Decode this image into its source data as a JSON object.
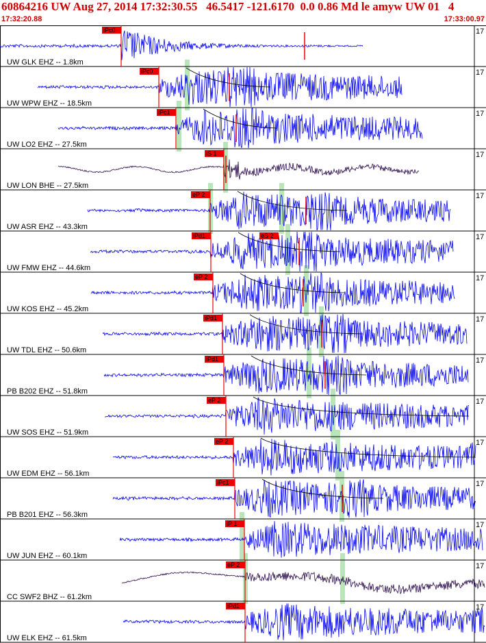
{
  "header": {
    "event_line": "60864216 UW Aug 27, 2014 17:32:30.55   46.5417 -121.6170  0.0 0.86 Md le amyw UW 01   4",
    "start_time": "17:32:20.88",
    "end_time": "17:33:00.97"
  },
  "colors": {
    "trace": "#0000ee",
    "trace_broadband": "#2a0a4a",
    "pick": "#ee0000",
    "pick_band": "#b8e6b8",
    "coda": "#000000"
  },
  "traces": [
    {
      "label": "UW GLK EHZ -- 1.8km",
      "pick": "iPc0",
      "scale": "17",
      "broadband": false
    },
    {
      "label": "UW WPW EHZ -- 18.5km",
      "pick": "iPc0",
      "scale": "17",
      "broadband": false
    },
    {
      "label": "UW LO2 EHZ -- 27.5km",
      "pick": "iPc1",
      "scale": "17",
      "broadband": false
    },
    {
      "label": "UW LON BHE -- 27.5km",
      "pick": "iS 1",
      "scale": "17",
      "broadband": true
    },
    {
      "label": "UW ASR EHZ -- 43.3km",
      "pick": "eP 2",
      "scale": "17",
      "broadband": false
    },
    {
      "label": "UW FMW EHZ -- 44.6km",
      "pick": "iPd1",
      "scale": "17",
      "broadband": false,
      "pick2": "eS 2"
    },
    {
      "label": "UW KOS EHZ -- 45.2km",
      "pick": "eP 2",
      "scale": "17",
      "broadband": false
    },
    {
      "label": "UW TDL EHZ -- 50.6km",
      "pick": "iPd1",
      "scale": "17",
      "broadband": false
    },
    {
      "label": "PB B202 EHZ -- 51.8km",
      "pick": "iPd1",
      "scale": "17",
      "broadband": false
    },
    {
      "label": "UW SOS EHZ -- 51.9km",
      "pick": "eP 2",
      "scale": "17",
      "broadband": false
    },
    {
      "label": "UW EDM EHZ -- 56.1km",
      "pick": "eP 2",
      "scale": "17",
      "broadband": false
    },
    {
      "label": "PB B201 EHZ -- 56.3km",
      "pick": "iPc1",
      "scale": "17",
      "broadband": false
    },
    {
      "label": "UW JUN EHZ -- 60.1km",
      "pick": "iP 1",
      "scale": "17",
      "broadband": false
    },
    {
      "label": "CC SWF2 BHZ -- 61.2km",
      "pick": "eP 2",
      "scale": "17",
      "broadband": true
    },
    {
      "label": "UW ELK EHZ -- 61.5km",
      "pick": "iPd1",
      "scale": "17",
      "broadband": false
    }
  ]
}
